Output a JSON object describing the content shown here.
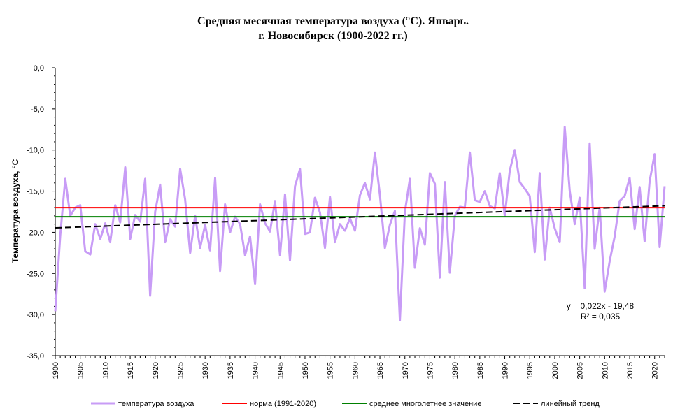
{
  "chart_data": {
    "type": "line",
    "title_line1": "Средняя месячная температура воздуха (°С). Январь.",
    "title_line2": "г. Новосибирск (1900-2022 гг.)",
    "ylabel": "Температура воздуха, °С",
    "xlabel": "",
    "xlim": [
      1900,
      2022
    ],
    "ylim": [
      -35,
      0
    ],
    "yticks": [
      0,
      -5,
      -10,
      -15,
      -20,
      -25,
      -30,
      -35
    ],
    "ytick_labels": [
      "0,0",
      "-5,0",
      "-10,0",
      "-15,0",
      "-20,0",
      "-25,0",
      "-30,0",
      "-35,0"
    ],
    "xticks": [
      1900,
      1905,
      1910,
      1915,
      1920,
      1925,
      1930,
      1935,
      1940,
      1945,
      1950,
      1955,
      1960,
      1965,
      1970,
      1975,
      1980,
      1985,
      1990,
      1995,
      2000,
      2005,
      2010,
      2015,
      2020
    ],
    "series": [
      {
        "name": "температура воздуха",
        "color": "#c89cf6",
        "x": [
          1900,
          1901,
          1902,
          1903,
          1904,
          1905,
          1906,
          1907,
          1908,
          1909,
          1910,
          1911,
          1912,
          1913,
          1914,
          1915,
          1916,
          1917,
          1918,
          1919,
          1920,
          1921,
          1922,
          1923,
          1924,
          1925,
          1926,
          1927,
          1928,
          1929,
          1930,
          1931,
          1932,
          1933,
          1934,
          1935,
          1936,
          1937,
          1938,
          1939,
          1940,
          1941,
          1942,
          1943,
          1944,
          1945,
          1946,
          1947,
          1948,
          1949,
          1950,
          1951,
          1952,
          1953,
          1954,
          1955,
          1956,
          1957,
          1958,
          1959,
          1960,
          1961,
          1962,
          1963,
          1964,
          1965,
          1966,
          1967,
          1968,
          1969,
          1970,
          1971,
          1972,
          1973,
          1974,
          1975,
          1976,
          1977,
          1978,
          1979,
          1980,
          1981,
          1982,
          1983,
          1984,
          1985,
          1986,
          1987,
          1988,
          1989,
          1990,
          1991,
          1992,
          1993,
          1994,
          1995,
          1996,
          1997,
          1998,
          1999,
          2000,
          2001,
          2002,
          2003,
          2004,
          2005,
          2006,
          2007,
          2008,
          2009,
          2010,
          2011,
          2012,
          2013,
          2014,
          2015,
          2016,
          2017,
          2018,
          2019,
          2020,
          2021,
          2022
        ],
        "values": [
          -29.6,
          -20.4,
          -13.5,
          -18.0,
          -17.0,
          -16.7,
          -22.3,
          -22.7,
          -19.0,
          -20.8,
          -18.9,
          -21.2,
          -16.7,
          -18.8,
          -12.1,
          -20.8,
          -17.9,
          -18.7,
          -13.5,
          -27.7,
          -17.5,
          -14.2,
          -21.2,
          -18.4,
          -19.3,
          -12.3,
          -16.0,
          -22.5,
          -18.0,
          -21.9,
          -19.1,
          -22.2,
          -13.4,
          -24.7,
          -16.6,
          -20.0,
          -18.1,
          -19.0,
          -22.8,
          -20.5,
          -26.3,
          -16.6,
          -18.9,
          -19.9,
          -16.2,
          -22.8,
          -15.4,
          -23.4,
          -14.4,
          -12.3,
          -20.2,
          -20.0,
          -15.8,
          -17.6,
          -21.9,
          -15.7,
          -21.2,
          -19.0,
          -19.8,
          -18.3,
          -19.8,
          -15.5,
          -14.0,
          -16.0,
          -10.3,
          -15.5,
          -21.9,
          -19.1,
          -17.4,
          -30.7,
          -17.5,
          -13.5,
          -24.3,
          -19.5,
          -21.5,
          -12.8,
          -14.1,
          -25.5,
          -13.9,
          -24.9,
          -18.0,
          -16.9,
          -17.0,
          -10.3,
          -16.1,
          -16.3,
          -15.0,
          -16.8,
          -17.1,
          -12.8,
          -18.0,
          -12.5,
          -10.0,
          -13.9,
          -14.7,
          -15.6,
          -22.4,
          -12.8,
          -23.3,
          -17.0,
          -19.5,
          -21.2,
          -7.2,
          -15.0,
          -19.0,
          -15.8,
          -26.8,
          -9.2,
          -22.0,
          -17.0,
          -27.2,
          -23.5,
          -20.5,
          -16.2,
          -15.6,
          -13.4,
          -19.6,
          -14.5,
          -21.1,
          -13.8,
          -10.5,
          -21.8,
          -14.4
        ]
      },
      {
        "name": "норма (1991-2020)",
        "color": "#ff0000",
        "value": -17.0
      },
      {
        "name": "среднее многолетнее значение",
        "color": "#008000",
        "value": -18.1
      },
      {
        "name": "линейный тренд",
        "color": "#000000",
        "slope": 0.022,
        "intercept": -19.48
      }
    ],
    "annotation_line1": "y = 0,022x  - 19,48",
    "annotation_line2": "R² = 0,035",
    "legend_position": "bottom",
    "grid": false
  }
}
